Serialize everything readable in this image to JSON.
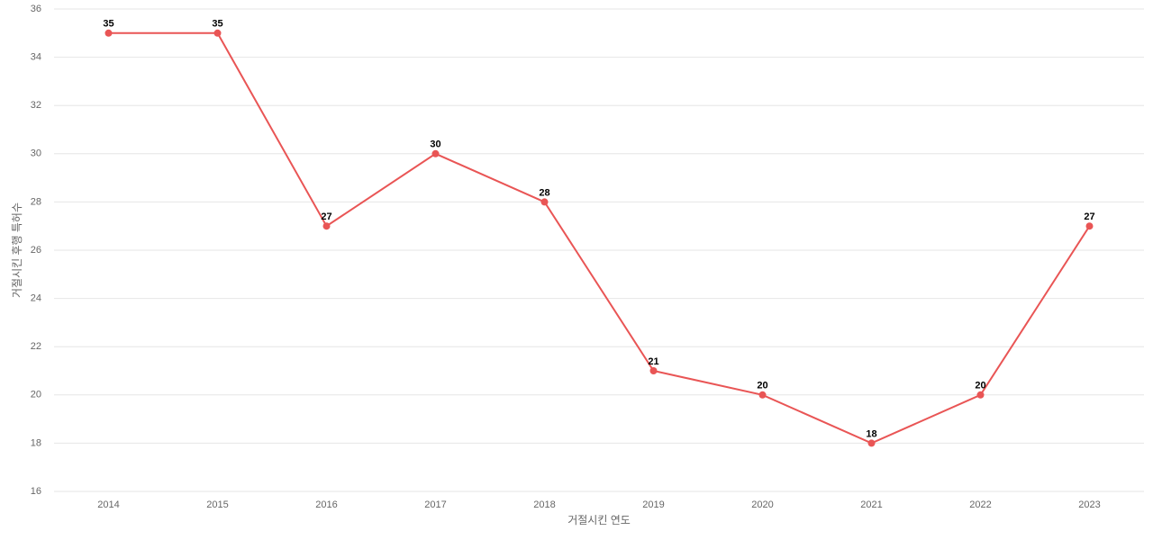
{
  "chart_data": {
    "type": "line",
    "x_label": "거절시킨 연도",
    "y_label": "거절시킨 후행 특허수",
    "categories": [
      "2014",
      "2015",
      "2016",
      "2017",
      "2018",
      "2019",
      "2020",
      "2021",
      "2022",
      "2023"
    ],
    "values": [
      35,
      35,
      27,
      30,
      28,
      21,
      20,
      18,
      20,
      27
    ],
    "color": "#e95555",
    "ylim": [
      16,
      36
    ],
    "yticks": [
      16,
      18,
      20,
      22,
      24,
      26,
      28,
      30,
      32,
      34,
      36
    ],
    "grid": true
  }
}
